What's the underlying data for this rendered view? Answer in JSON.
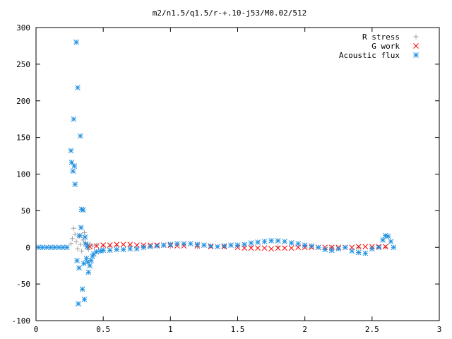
{
  "chart_data": {
    "type": "scatter",
    "title": "m2/n1.5/q1.5/r-+.10-j53/M0.02/512",
    "xlabel": "",
    "ylabel": "",
    "xlim": [
      0,
      3
    ],
    "ylim": [
      -100,
      300
    ],
    "x_ticks": [
      {
        "value": 0,
        "label": "0"
      },
      {
        "value": 0.5,
        "label": "0.5"
      },
      {
        "value": 1,
        "label": "1"
      },
      {
        "value": 1.5,
        "label": "1.5"
      },
      {
        "value": 2,
        "label": "2"
      },
      {
        "value": 2.5,
        "label": "2.5"
      },
      {
        "value": 3,
        "label": "3"
      }
    ],
    "y_ticks": [
      {
        "value": -100,
        "label": "-100"
      },
      {
        "value": -50,
        "label": "-50"
      },
      {
        "value": 0,
        "label": "0"
      },
      {
        "value": 50,
        "label": "50"
      },
      {
        "value": 100,
        "label": "100"
      },
      {
        "value": 150,
        "label": "150"
      },
      {
        "value": 200,
        "label": "200"
      },
      {
        "value": 250,
        "label": "250"
      },
      {
        "value": 300,
        "label": "300"
      }
    ],
    "grid": false,
    "legend_position": "top-right",
    "series": [
      {
        "name": "R stress",
        "marker": "plus",
        "color": "#a0a0a0",
        "points": [
          [
            0.26,
            5
          ],
          [
            0.27,
            12
          ],
          [
            0.28,
            26
          ],
          [
            0.29,
            18
          ],
          [
            0.3,
            8
          ],
          [
            0.31,
            -2
          ],
          [
            0.32,
            15
          ],
          [
            0.33,
            4
          ],
          [
            0.34,
            -5
          ],
          [
            0.35,
            10
          ],
          [
            0.36,
            20
          ],
          [
            0.37,
            6
          ],
          [
            0.38,
            1
          ],
          [
            0.39,
            -3
          ],
          [
            0.4,
            5
          ],
          [
            0.42,
            2
          ],
          [
            0.45,
            3
          ],
          [
            0.5,
            2
          ],
          [
            0.55,
            1
          ],
          [
            0.6,
            2
          ],
          [
            0.7,
            1
          ],
          [
            0.8,
            1
          ],
          [
            0.9,
            2
          ],
          [
            1.0,
            1
          ],
          [
            1.2,
            1
          ],
          [
            1.4,
            1
          ],
          [
            1.6,
            2
          ],
          [
            1.8,
            1
          ],
          [
            2.0,
            1
          ],
          [
            2.2,
            0
          ],
          [
            2.4,
            0
          ],
          [
            2.6,
            0
          ]
        ]
      },
      {
        "name": "G work",
        "marker": "cross",
        "color": "#ff0000",
        "points": [
          [
            0.4,
            1
          ],
          [
            0.45,
            2
          ],
          [
            0.5,
            3
          ],
          [
            0.55,
            3
          ],
          [
            0.6,
            4
          ],
          [
            0.65,
            4
          ],
          [
            0.7,
            4
          ],
          [
            0.75,
            3
          ],
          [
            0.8,
            3
          ],
          [
            0.85,
            3
          ],
          [
            0.9,
            3
          ],
          [
            0.95,
            3
          ],
          [
            1.0,
            3
          ],
          [
            1.05,
            2
          ],
          [
            1.1,
            2
          ],
          [
            1.2,
            2
          ],
          [
            1.3,
            1
          ],
          [
            1.4,
            1
          ],
          [
            1.5,
            0
          ],
          [
            1.55,
            -1
          ],
          [
            1.6,
            -1
          ],
          [
            1.65,
            -1
          ],
          [
            1.7,
            -1
          ],
          [
            1.75,
            -2
          ],
          [
            1.8,
            -1
          ],
          [
            1.85,
            -1
          ],
          [
            1.9,
            -1
          ],
          [
            1.95,
            0
          ],
          [
            2.0,
            0
          ],
          [
            2.05,
            0
          ],
          [
            2.1,
            0
          ],
          [
            2.15,
            0
          ],
          [
            2.2,
            0
          ],
          [
            2.25,
            0
          ],
          [
            2.3,
            0
          ],
          [
            2.35,
            0
          ],
          [
            2.4,
            1
          ],
          [
            2.45,
            1
          ],
          [
            2.5,
            1
          ],
          [
            2.55,
            1
          ],
          [
            2.6,
            1
          ]
        ]
      },
      {
        "name": "Acoustic flux",
        "marker": "star",
        "color": "#1f8fe0",
        "points": [
          [
            0.02,
            0
          ],
          [
            0.05,
            0
          ],
          [
            0.08,
            0
          ],
          [
            0.11,
            0
          ],
          [
            0.14,
            0
          ],
          [
            0.17,
            0
          ],
          [
            0.2,
            0
          ],
          [
            0.23,
            0
          ],
          [
            0.26,
            132
          ],
          [
            0.265,
            116
          ],
          [
            0.275,
            104
          ],
          [
            0.28,
            175
          ],
          [
            0.285,
            111
          ],
          [
            0.29,
            86
          ],
          [
            0.3,
            280
          ],
          [
            0.305,
            -18
          ],
          [
            0.31,
            218
          ],
          [
            0.315,
            -77
          ],
          [
            0.32,
            -28
          ],
          [
            0.325,
            16
          ],
          [
            0.33,
            152
          ],
          [
            0.335,
            27
          ],
          [
            0.34,
            52
          ],
          [
            0.345,
            -57
          ],
          [
            0.35,
            51
          ],
          [
            0.355,
            -22
          ],
          [
            0.36,
            -71
          ],
          [
            0.365,
            14
          ],
          [
            0.37,
            5
          ],
          [
            0.375,
            -15
          ],
          [
            0.38,
            1
          ],
          [
            0.385,
            -20
          ],
          [
            0.39,
            -34
          ],
          [
            0.4,
            -25
          ],
          [
            0.41,
            -18
          ],
          [
            0.42,
            -12
          ],
          [
            0.43,
            -9
          ],
          [
            0.45,
            -6
          ],
          [
            0.48,
            -5
          ],
          [
            0.5,
            -4
          ],
          [
            0.55,
            -4
          ],
          [
            0.6,
            -3
          ],
          [
            0.65,
            -3
          ],
          [
            0.7,
            -2
          ],
          [
            0.75,
            -2
          ],
          [
            0.8,
            0
          ],
          [
            0.85,
            1
          ],
          [
            0.9,
            2
          ],
          [
            0.95,
            3
          ],
          [
            1.0,
            4
          ],
          [
            1.05,
            5
          ],
          [
            1.1,
            5
          ],
          [
            1.15,
            5
          ],
          [
            1.2,
            4
          ],
          [
            1.25,
            3
          ],
          [
            1.3,
            2
          ],
          [
            1.35,
            1
          ],
          [
            1.4,
            2
          ],
          [
            1.45,
            3
          ],
          [
            1.5,
            3
          ],
          [
            1.55,
            4
          ],
          [
            1.6,
            6
          ],
          [
            1.65,
            7
          ],
          [
            1.7,
            8
          ],
          [
            1.75,
            9
          ],
          [
            1.8,
            9
          ],
          [
            1.85,
            8
          ],
          [
            1.9,
            6
          ],
          [
            1.95,
            5
          ],
          [
            2.0,
            3
          ],
          [
            2.05,
            2
          ],
          [
            2.1,
            0
          ],
          [
            2.15,
            -3
          ],
          [
            2.2,
            -4
          ],
          [
            2.25,
            -2
          ],
          [
            2.3,
            0
          ],
          [
            2.35,
            -5
          ],
          [
            2.4,
            -7
          ],
          [
            2.45,
            -8
          ],
          [
            2.5,
            -2
          ],
          [
            2.55,
            0
          ],
          [
            2.58,
            10
          ],
          [
            2.6,
            16
          ],
          [
            2.62,
            15
          ],
          [
            2.64,
            8
          ],
          [
            2.66,
            0
          ]
        ]
      }
    ]
  }
}
